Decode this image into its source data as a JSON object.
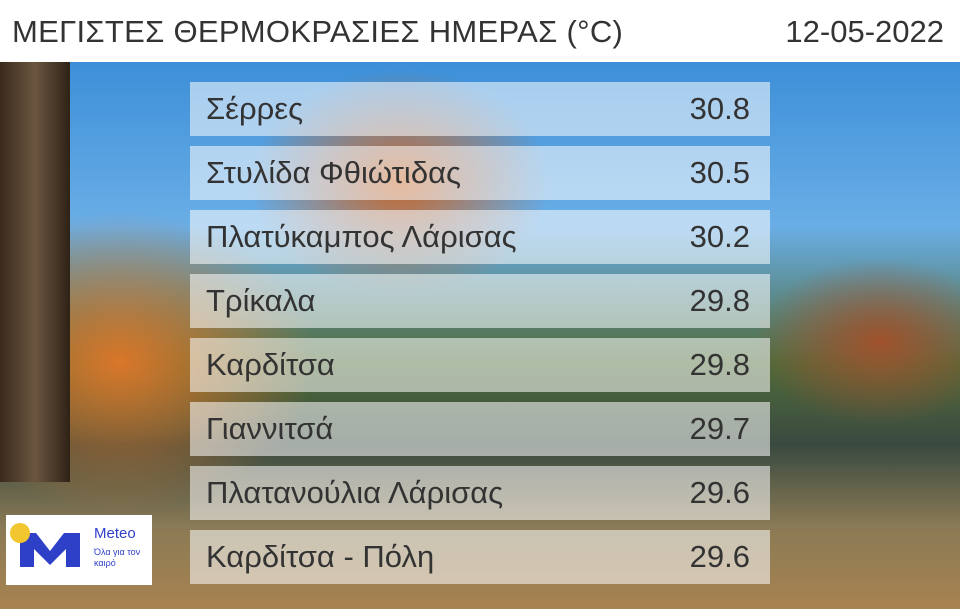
{
  "header": {
    "title": "ΜΕΓΙΣΤΕΣ ΘΕΡΜΟΚΡΑΣΙΕΣ ΗΜΕΡΑΣ (°C)",
    "date": "12-05-2022"
  },
  "rows": [
    {
      "name": "Σέρρες",
      "value": "30.8"
    },
    {
      "name": "Στυλίδα Φθιώτιδας",
      "value": "30.5"
    },
    {
      "name": "Πλατύκαμπος Λάρισας",
      "value": "30.2"
    },
    {
      "name": "Τρίκαλα",
      "value": "29.8"
    },
    {
      "name": "Καρδίτσα",
      "value": "29.8"
    },
    {
      "name": "Γιαννιτσά",
      "value": "29.7"
    },
    {
      "name": "Πλατανούλια Λάρισας",
      "value": "29.6"
    },
    {
      "name": "Καρδίτσα - Πόλη",
      "value": "29.6"
    }
  ],
  "logo": {
    "brand": "Meteo",
    "tagline": "Όλα για τον καιρό",
    "colors": {
      "blue": "#2e3fc8",
      "yellow": "#f2c62e"
    }
  }
}
